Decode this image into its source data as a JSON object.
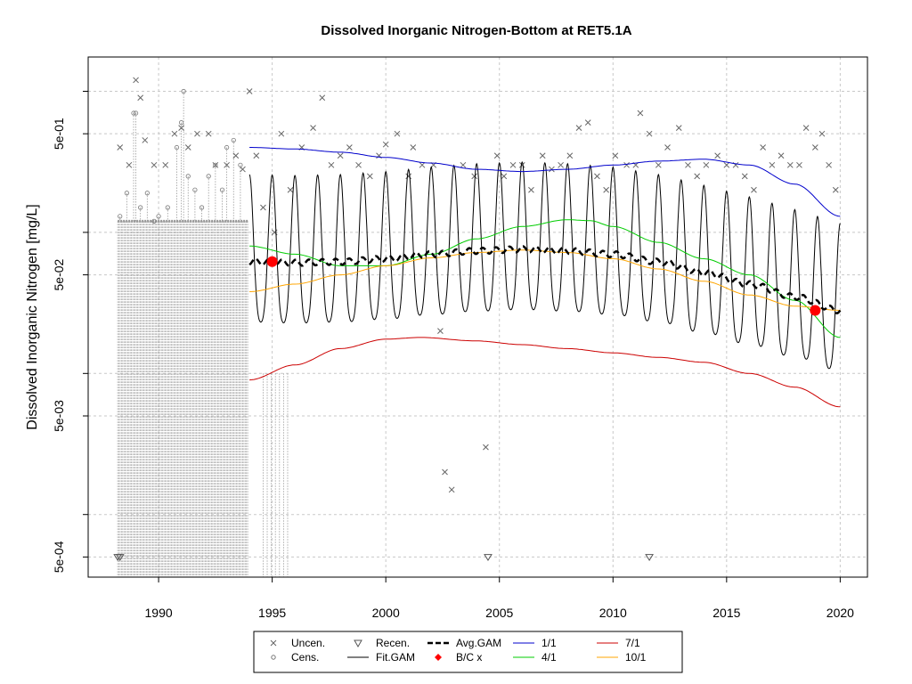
{
  "chart_data": {
    "type": "scatter",
    "title": "Dissolved Inorganic Nitrogen-Bottom at RET5.1A",
    "xlabel": "",
    "ylabel": "Dissolved Inorganic Nitrogen [mg/L]",
    "x_scale": "linear",
    "y_scale": "log",
    "xlim": [
      1986.9,
      2021.2
    ],
    "ylim": [
      0.00036,
      1.75
    ],
    "x_ticks": [
      1990,
      1995,
      2000,
      2005,
      2010,
      2015,
      2020
    ],
    "x_tick_labels": [
      "1990",
      "1995",
      "2000",
      "2005",
      "2010",
      "2015",
      "2020"
    ],
    "y_labeled_ticks": [
      0.0005,
      0.005,
      0.05,
      0.5
    ],
    "y_tick_labels": [
      "5e-04",
      "5e-03",
      "5e-02",
      "5e-01"
    ],
    "y_minor_ticks": [
      0.001,
      0.01,
      0.1,
      1.0
    ],
    "grid": true,
    "legend_position": "bottom",
    "legend": [
      {
        "label": "Uncen.",
        "symbol": "x"
      },
      {
        "label": "Cens.",
        "symbol": "circle"
      },
      {
        "label": "Recen.",
        "symbol": "triangle-down"
      },
      {
        "label": "Fit.GAM",
        "symbol": "line",
        "color": "#000000"
      },
      {
        "label": "Avg.GAM",
        "symbol": "dashed-line",
        "color": "#000000"
      },
      {
        "label": "B/C x",
        "symbol": "diamond",
        "color": "#ff0000"
      },
      {
        "label": "1/1",
        "symbol": "line",
        "color": "#0000cc"
      },
      {
        "label": "4/1",
        "symbol": "line",
        "color": "#00cc00"
      },
      {
        "label": "7/1",
        "symbol": "line",
        "color": "#cc0000"
      },
      {
        "label": "10/1",
        "symbol": "line",
        "color": "#ffa500"
      }
    ],
    "series": [
      {
        "name": "1/1",
        "color": "#0000cc",
        "x": [
          1994.0,
          1996,
          1998,
          2000,
          2002,
          2004,
          2006,
          2008,
          2010,
          2012,
          2014,
          2016,
          2018,
          2020.0
        ],
        "y": [
          0.4,
          0.39,
          0.37,
          0.34,
          0.31,
          0.28,
          0.27,
          0.28,
          0.3,
          0.32,
          0.33,
          0.3,
          0.22,
          0.13
        ]
      },
      {
        "name": "4/1",
        "color": "#00cc00",
        "x": [
          1994.0,
          1996,
          1998,
          2000,
          2002,
          2004,
          2006,
          2008,
          2009,
          2010,
          2012,
          2014,
          2016,
          2018,
          2020.0
        ],
        "y": [
          0.08,
          0.07,
          0.058,
          0.058,
          0.07,
          0.09,
          0.11,
          0.123,
          0.121,
          0.11,
          0.085,
          0.065,
          0.05,
          0.033,
          0.018
        ]
      },
      {
        "name": "7/1",
        "color": "#cc0000",
        "x": [
          1994.0,
          1996,
          1998,
          2000,
          2001.5,
          2004,
          2006,
          2008,
          2010,
          2012,
          2014,
          2016,
          2018,
          2020.0
        ],
        "y": [
          0.009,
          0.0115,
          0.015,
          0.0175,
          0.018,
          0.017,
          0.016,
          0.015,
          0.014,
          0.013,
          0.012,
          0.01,
          0.008,
          0.0058
        ]
      },
      {
        "name": "10/1",
        "color": "#ffa500",
        "x": [
          1994.0,
          1996,
          1998,
          2000,
          2002,
          2004,
          2006,
          2008,
          2010,
          2012,
          2014,
          2016,
          2018,
          2020.0
        ],
        "y": [
          0.038,
          0.043,
          0.05,
          0.058,
          0.066,
          0.072,
          0.075,
          0.072,
          0.065,
          0.055,
          0.045,
          0.036,
          0.03,
          0.028
        ]
      },
      {
        "name": "Avg.GAM",
        "color": "#000000",
        "x": [
          1994.0,
          1996,
          1998,
          2000,
          2002,
          2004,
          2006,
          2008,
          2010,
          2012,
          2014,
          2016,
          2018,
          2020.0
        ],
        "y": [
          0.062,
          0.061,
          0.062,
          0.065,
          0.07,
          0.074,
          0.076,
          0.074,
          0.07,
          0.062,
          0.052,
          0.043,
          0.035,
          0.028
        ]
      },
      {
        "name": "Fit.GAM",
        "color": "#000000",
        "description_start": 1994.0,
        "description_end": 2020.0,
        "peak_profile": "Avg.GAM annual cycle; winter peaks near 1/1 line, summer troughs below 7/1 line"
      },
      {
        "name": "B/C x",
        "color": "#ff0000",
        "x": [
          1995.0,
          2018.9
        ],
        "y": [
          0.062,
          0.028
        ]
      }
    ],
    "uncensored_points": {
      "x": [
        1988.3,
        1988.7,
        1989.0,
        1989.2,
        1989.4,
        1989.8,
        1990.3,
        1990.7,
        1991.0,
        1991.3,
        1991.7,
        1992.2,
        1992.5,
        1993.0,
        1993.4,
        1993.7,
        1994.0,
        1994.3,
        1994.6,
        1995.1,
        1995.4,
        1995.8,
        1996.3,
        1996.8,
        1997.2,
        1997.6,
        1998.0,
        1998.4,
        1998.8,
        1999.3,
        1999.7,
        2000.0,
        2000.5,
        2001.0,
        2001.2,
        2001.6,
        2002.1,
        2002.4,
        2002.6,
        2002.9,
        2003.4,
        2003.9,
        2004.4,
        2004.9,
        2005.2,
        2005.6,
        2006.0,
        2006.4,
        2006.9,
        2007.3,
        2007.7,
        2008.1,
        2008.5,
        2008.9,
        2009.3,
        2009.7,
        2010.1,
        2010.6,
        2011.0,
        2011.2,
        2011.6,
        2012.0,
        2012.4,
        2012.9,
        2013.3,
        2013.7,
        2014.1,
        2014.6,
        2015.0,
        2015.4,
        2015.8,
        2016.2,
        2016.6,
        2017.0,
        2017.4,
        2017.8,
        2018.2,
        2018.5,
        2018.9,
        2019.2,
        2019.5,
        2019.8
      ],
      "y": [
        0.4,
        0.3,
        1.2,
        0.9,
        0.45,
        0.3,
        0.3,
        0.5,
        0.55,
        0.4,
        0.5,
        0.5,
        0.3,
        0.3,
        0.35,
        0.28,
        1.0,
        0.35,
        0.15,
        0.1,
        0.5,
        0.2,
        0.4,
        0.55,
        0.9,
        0.3,
        0.35,
        0.4,
        0.3,
        0.25,
        0.35,
        0.42,
        0.5,
        0.25,
        0.4,
        0.3,
        0.3,
        0.02,
        0.002,
        0.0015,
        0.3,
        0.25,
        0.003,
        0.35,
        0.25,
        0.3,
        0.3,
        0.2,
        0.35,
        0.28,
        0.3,
        0.35,
        0.55,
        0.6,
        0.25,
        0.2,
        0.35,
        0.3,
        0.3,
        0.7,
        0.5,
        0.3,
        0.4,
        0.55,
        0.3,
        0.25,
        0.3,
        0.35,
        0.3,
        0.3,
        0.25,
        0.2,
        0.4,
        0.3,
        0.35,
        0.3,
        0.3,
        0.55,
        0.4,
        0.5,
        0.3,
        0.2
      ]
    },
    "censored_points": {
      "x": [
        1988.3,
        1988.6,
        1988.9,
        1989.0,
        1989.2,
        1989.5,
        1989.8,
        1990.0,
        1990.4,
        1990.8,
        1991.0,
        1991.1,
        1991.3,
        1991.6,
        1991.9,
        1992.2,
        1992.5,
        1992.8,
        1993.0,
        1993.3,
        1993.6
      ],
      "y": [
        0.13,
        0.19,
        0.7,
        0.7,
        0.15,
        0.19,
        0.12,
        0.13,
        0.15,
        0.4,
        0.6,
        1.0,
        0.25,
        0.2,
        0.15,
        0.25,
        0.3,
        0.2,
        0.4,
        0.45,
        0.3
      ]
    },
    "recensored_points": {
      "x": [
        1988.2,
        1988.3,
        2004.5,
        2011.6
      ],
      "y": [
        0.0005,
        0.0005,
        0.0005,
        0.0005
      ]
    }
  }
}
